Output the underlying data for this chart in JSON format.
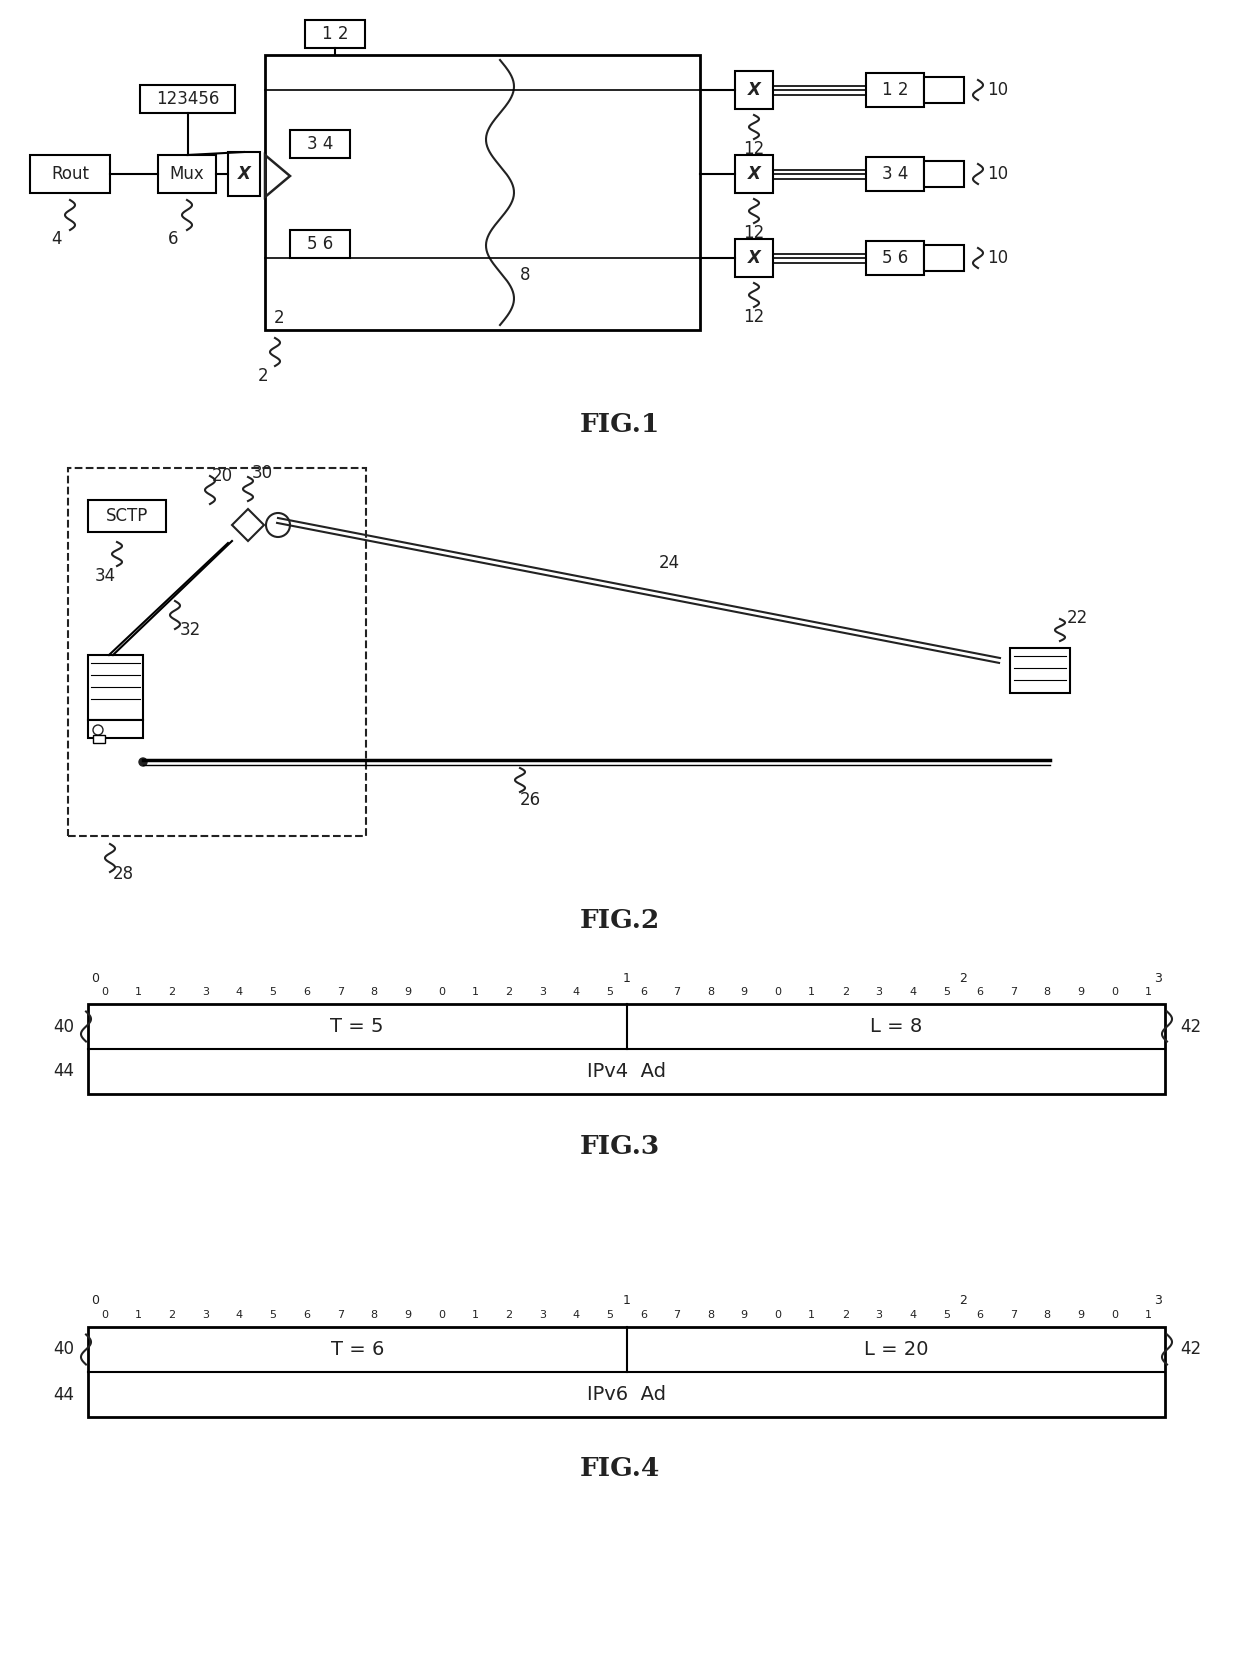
{
  "fig_width": 12.4,
  "fig_height": 16.61,
  "bg_color": "#ffffff",
  "fig1_label": "FIG.1",
  "fig2_label": "FIG.2",
  "fig3_label": "FIG.3",
  "fig4_label": "FIG.4",
  "fig3_row1_left": "T = 5",
  "fig3_row1_right": "L = 8",
  "fig3_row2": "IPv4  Ad",
  "fig4_row1_left": "T = 6",
  "fig4_row1_right": "L = 20",
  "fig4_row2": "IPv6  Ad"
}
